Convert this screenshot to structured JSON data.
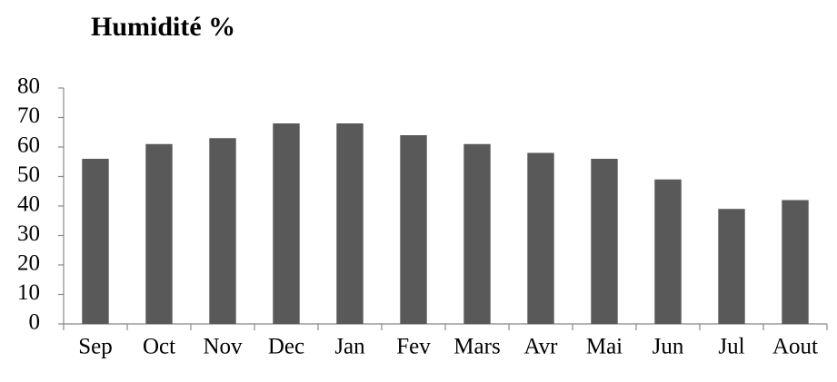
{
  "chart_data": {
    "type": "bar",
    "title": "Humidité %",
    "categories": [
      "Sep",
      "Oct",
      "Nov",
      "Dec",
      "Jan",
      "Fev",
      "Mars",
      "Avr",
      "Mai",
      "Jun",
      "Jul",
      "Aout"
    ],
    "values": [
      56,
      61,
      63,
      68,
      68,
      64,
      61,
      58,
      56,
      49,
      39,
      42
    ],
    "color": "#595959",
    "ylim": [
      0,
      80
    ],
    "yticks": [
      0,
      10,
      20,
      30,
      40,
      50,
      60,
      70,
      80
    ],
    "grid": false
  }
}
